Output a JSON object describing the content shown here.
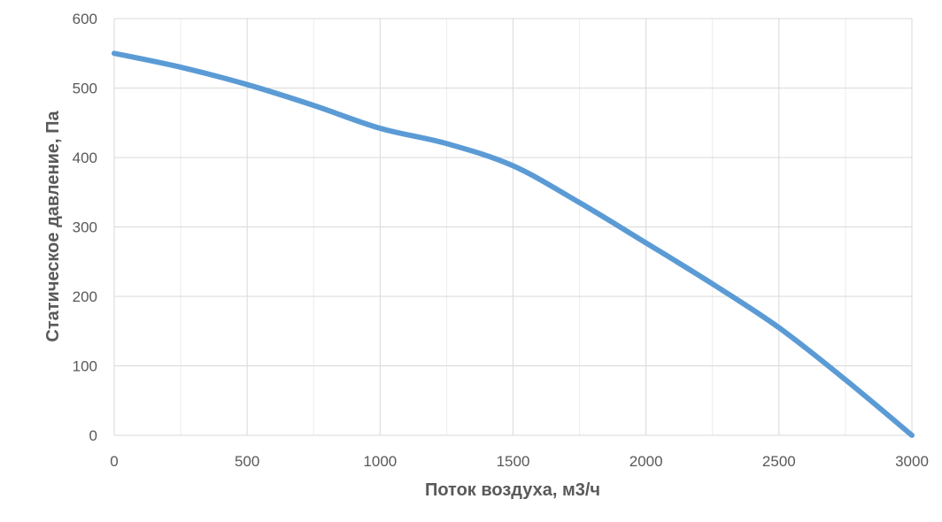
{
  "chart_data": {
    "type": "line",
    "title": "",
    "xlabel": "Поток воздуха, м3/ч",
    "ylabel": "Статическое давление, Па",
    "xlim": [
      0,
      3000
    ],
    "ylim": [
      0,
      600
    ],
    "x_ticks": [
      0,
      500,
      1000,
      1500,
      2000,
      2500,
      3000
    ],
    "y_ticks": [
      0,
      100,
      200,
      300,
      400,
      500,
      600
    ],
    "x_tick_labels": [
      "0",
      "500",
      "1000",
      "1500",
      "2000",
      "2500",
      "3000"
    ],
    "y_tick_labels": [
      "0",
      "100",
      "200",
      "300",
      "400",
      "500",
      "600"
    ],
    "minor_x_gridlines": [
      250,
      750,
      1250,
      1750,
      2250,
      2750
    ],
    "grid": true,
    "legend": "none",
    "series_color": "#5b9bd5",
    "grid_color": "#d9d9d9",
    "series": [
      {
        "x": [
          0,
          250,
          500,
          750,
          1000,
          1250,
          1500,
          1750,
          2000,
          2250,
          2500,
          2750,
          3000
        ],
        "y": [
          550,
          530,
          505,
          475,
          442,
          420,
          388,
          335,
          277,
          218,
          155,
          80,
          0
        ]
      }
    ]
  }
}
